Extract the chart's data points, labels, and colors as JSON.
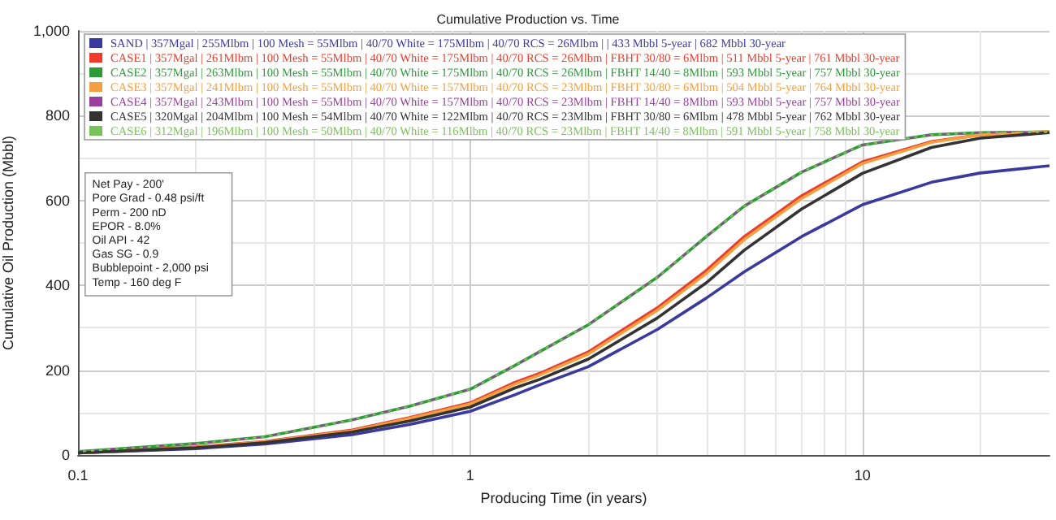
{
  "chart_data": {
    "type": "line",
    "title": "Cumulative Production vs. Time",
    "xlabel": "Producing Time (in years)",
    "ylabel": "Cumulative Oil Production (Mbbl)",
    "x": [
      0.1,
      0.2,
      0.3,
      0.5,
      0.7,
      1,
      1.3,
      1.5,
      2,
      3,
      4,
      5,
      7,
      10,
      15,
      20,
      30
    ],
    "series": [
      {
        "name": "SAND | 357Mgal | 255Mlbm | 100 Mesh = 55Mlbm | 40/70 White = 175Mlbm | 40/70 RCS = 26Mlbm | | 433 Mbbl 5-year | 682 Mbbl 30-year",
        "color": "#3a3a9e",
        "values": [
          5,
          15,
          26,
          48,
          72,
          103,
          142,
          165,
          208,
          296,
          370,
          432,
          515,
          590,
          643,
          665,
          682
        ]
      },
      {
        "name": "CASE1 | 357Mgal | 261Mlbm | 100 Mesh = 55Mlbm | 40/70 White = 175Mlbm | 40/70 RCS = 26Mlbm | FBHT 30/80 = 6Mlbm | 511 Mbbl 5-year | 761 Mbbl 30-year",
        "color": "#ee3b2b",
        "values": [
          5,
          19,
          32,
          59,
          88,
          123,
          171,
          192,
          243,
          347,
          435,
          515,
          611,
          691,
          739,
          755,
          762
        ]
      },
      {
        "name": "CASE2 | 357Mgal | 263Mlbm | 100 Mesh = 55Mlbm | 40/70 White = 175Mlbm | 40/70 RCS = 26Mlbm | FBHT 14/40 = 8Mlbm | 593 Mbbl 5-year | 757 Mbbl 30-year",
        "color": "#2e9a3a",
        "values": [
          8,
          27,
          43,
          83,
          115,
          155,
          211,
          243,
          307,
          419,
          515,
          587,
          667,
          731,
          755,
          760,
          762
        ]
      },
      {
        "name": "CASE3 | 357Mgal | 241Mlbm | 100 Mesh = 55Mlbm | 40/70 White = 157Mlbm | 40/70 RCS = 23Mlbm | FBHT 30/80 = 6Mlbm | 504 Mbbl 5-year | 764 Mbbl 30-year",
        "color": "#f5a040",
        "values": [
          5,
          18,
          31,
          57,
          86,
          120,
          167,
          188,
          238,
          341,
          428,
          508,
          605,
          687,
          737,
          755,
          763
        ]
      },
      {
        "name": "CASE4 | 357Mgal | 243Mlbm | 100 Mesh = 55Mlbm | 40/70 White = 157Mlbm | 40/70 RCS = 23Mlbm | FBHT 14/40 = 8Mlbm | 593 Mbbl 5-year | 757 Mbbl 30-year",
        "color": "#9b3f9e",
        "line_style": "dashed",
        "values": [
          8,
          27,
          43,
          83,
          115,
          155,
          211,
          243,
          307,
          419,
          515,
          587,
          667,
          731,
          755,
          760,
          761
        ]
      },
      {
        "name": "CASE5 | 320Mgal | 204Mlbm | 100 Mesh = 54Mlbm | 40/70 White = 122Mlbm | 40/70 RCS = 23Mlbm | FBHT 30/80 = 6Mlbm | 478 Mbbl 5-year | 762 Mbbl 30-year",
        "color": "#333333",
        "values": [
          5,
          17,
          29,
          54,
          80,
          113,
          158,
          178,
          226,
          323,
          406,
          483,
          580,
          664,
          725,
          747,
          760
        ]
      },
      {
        "name": "CASE6 | 312Mgal | 196Mlbm | 100 Mesh = 50Mlbm | 40/70 White = 116Mlbm | 40/70 RCS = 23Mlbm | FBHT 14/40 = 8Mlbm | 591 Mbbl 5-year | 758 Mbbl 30-year",
        "color": "#7ac25a",
        "line_style": "dotted",
        "values": [
          8,
          27,
          43,
          83,
          115,
          155,
          211,
          243,
          307,
          419,
          515,
          587,
          667,
          731,
          755,
          760,
          761
        ]
      }
    ],
    "annotations": [
      "Net Pay - 200'",
      "Pore Grad - 0.48 psi/ft",
      "Perm - 200 nD",
      "EPOR - 8.0%",
      "Oil API - 42",
      "Gas SG - 0.9",
      "Bubblepoint - 2,000 psi",
      "Temp - 160 deg F"
    ],
    "log": "x",
    "xlim": [
      0.1,
      30
    ],
    "xticks": [
      0.1,
      1,
      10
    ],
    "ylim": [
      0,
      1000
    ],
    "yticks": [
      0,
      200,
      400,
      600,
      800,
      {
        "value": 1000,
        "label": "1,000"
      }
    ],
    "grid": true,
    "legend": "top left",
    "marker": "none",
    "line_style": "solid"
  }
}
